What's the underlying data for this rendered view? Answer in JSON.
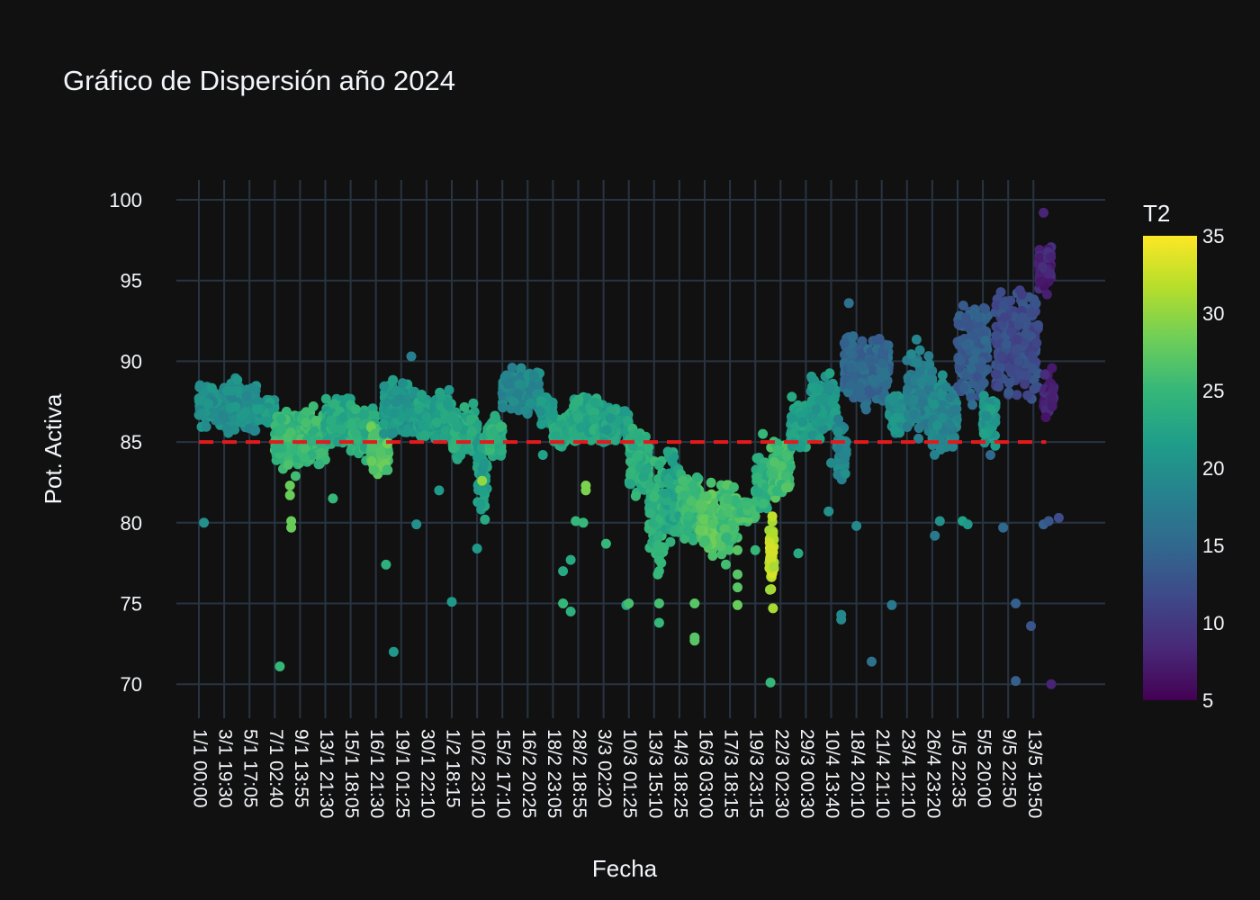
{
  "chart_data": {
    "type": "scatter",
    "title": "Gráfico de Dispersión año 2024",
    "xlabel": "Fecha",
    "ylabel": "Pot. Activa",
    "ylim": [
      68,
      101
    ],
    "yticks": [
      70,
      75,
      80,
      85,
      90,
      95,
      100
    ],
    "grid": true,
    "x_tick_labels": [
      "1/1 00:00",
      "3/1 19:30",
      "5/1 17:05",
      "7/1 02:40",
      "9/1 13:55",
      "13/1 21:30",
      "15/1 18:05",
      "16/1 21:30",
      "19/1 01:25",
      "30/1 22:10",
      "1/2 18:15",
      "10/2 23:10",
      "15/2 17:10",
      "16/2 20:25",
      "18/2 23:05",
      "28/2 18:55",
      "3/3 02:20",
      "10/3 01:25",
      "13/3 15:10",
      "14/3 18:25",
      "16/3 03:00",
      "17/3 18:15",
      "19/3 23:15",
      "22/3 02:30",
      "29/3 00:30",
      "10/4 13:40",
      "18/4 20:10",
      "21/4 21:10",
      "23/4 12:10",
      "26/4 23:20",
      "1/5 22:35",
      "5/5 20:00",
      "9/5 22:50",
      "13/5 19:50"
    ],
    "reference_line": {
      "y": 85,
      "color": "#e31a1c",
      "style": "dashed"
    },
    "colorbar": {
      "title": "T2",
      "min": 5,
      "max": 35,
      "ticks": [
        5,
        10,
        15,
        20,
        25,
        30,
        35
      ],
      "colorscale": "Viridis"
    },
    "clusters": [
      {
        "x": [
          0,
          1.1
        ],
        "y": [
          85.5,
          89.0
        ],
        "t2": 20
      },
      {
        "x": [
          1.1,
          2.3
        ],
        "y": [
          85.2,
          89.2
        ],
        "t2": 20
      },
      {
        "x": [
          2.3,
          3.0
        ],
        "y": [
          86.0,
          88.0
        ],
        "t2": 21
      },
      {
        "x": [
          3.0,
          4.0
        ],
        "y": [
          82.5,
          87.2
        ],
        "t2": 25
      },
      {
        "x": [
          4.0,
          5.0
        ],
        "y": [
          83.0,
          87.5
        ],
        "t2": 25
      },
      {
        "x": [
          5.0,
          6.0
        ],
        "y": [
          84.5,
          88.0
        ],
        "t2": 23
      },
      {
        "x": [
          6.0,
          7.0
        ],
        "y": [
          83.5,
          88.0
        ],
        "t2": 24
      },
      {
        "x": [
          6.8,
          7.5
        ],
        "y": [
          82.0,
          87.0
        ],
        "t2": 27
      },
      {
        "x": [
          7.3,
          8.6
        ],
        "y": [
          85.0,
          89.0
        ],
        "t2": 21
      },
      {
        "x": [
          8.6,
          10.0
        ],
        "y": [
          84.8,
          88.5
        ],
        "t2": 22
      },
      {
        "x": [
          10.0,
          11.0
        ],
        "y": [
          83.5,
          87.5
        ],
        "t2": 23
      },
      {
        "x": [
          11.0,
          11.4
        ],
        "y": [
          79.5,
          86.0
        ],
        "t2": 22
      },
      {
        "x": [
          11.4,
          12.0
        ],
        "y": [
          83.5,
          87.0
        ],
        "t2": 24
      },
      {
        "x": [
          12.0,
          13.5
        ],
        "y": [
          86.5,
          90.0
        ],
        "t2": 19
      },
      {
        "x": [
          13.5,
          14.0
        ],
        "y": [
          85.5,
          88.5
        ],
        "t2": 21
      },
      {
        "x": [
          14.0,
          15.0
        ],
        "y": [
          84.5,
          87.0
        ],
        "t2": 23
      },
      {
        "x": [
          14.8,
          16.0
        ],
        "y": [
          84.5,
          88.5
        ],
        "t2": 23
      },
      {
        "x": [
          16.0,
          17.0
        ],
        "y": [
          84.5,
          87.5
        ],
        "t2": 22
      },
      {
        "x": [
          17.0,
          17.8
        ],
        "y": [
          81.0,
          86.5
        ],
        "t2": 24
      },
      {
        "x": [
          17.8,
          18.4
        ],
        "y": [
          76.5,
          84.5
        ],
        "t2": 24
      },
      {
        "x": [
          18.4,
          19.0
        ],
        "y": [
          78.0,
          85.5
        ],
        "t2": 23
      },
      {
        "x": [
          19.0,
          19.8
        ],
        "y": [
          78.5,
          84.0
        ],
        "t2": 25
      },
      {
        "x": [
          19.8,
          20.6
        ],
        "y": [
          77.0,
          83.0
        ],
        "t2": 27
      },
      {
        "x": [
          20.6,
          21.3
        ],
        "y": [
          76.8,
          83.5
        ],
        "t2": 26
      },
      {
        "x": [
          21.3,
          22.0
        ],
        "y": [
          79.8,
          81.5
        ],
        "t2": 26
      },
      {
        "x": [
          22.0,
          22.6
        ],
        "y": [
          80.0,
          84.5
        ],
        "t2": 24
      },
      {
        "x": [
          22.55,
          22.75
        ],
        "y": [
          75.2,
          81.0
        ],
        "t2": 32
      },
      {
        "x": [
          22.6,
          23.4
        ],
        "y": [
          81.0,
          85.5
        ],
        "t2": 26
      },
      {
        "x": [
          23.4,
          24.2
        ],
        "y": [
          84.0,
          88.0
        ],
        "t2": 22
      },
      {
        "x": [
          24.2,
          25.2
        ],
        "y": [
          85.0,
          89.5
        ],
        "t2": 21
      },
      {
        "x": [
          25.2,
          25.6
        ],
        "y": [
          82.0,
          87.0
        ],
        "t2": 19
      },
      {
        "x": [
          25.5,
          27.3
        ],
        "y": [
          86.5,
          92.5
        ],
        "t2": 15
      },
      {
        "x": [
          27.3,
          28.0
        ],
        "y": [
          85.0,
          88.5
        ],
        "t2": 20
      },
      {
        "x": [
          28.0,
          29.0
        ],
        "y": [
          84.5,
          92.0
        ],
        "t2": 18
      },
      {
        "x": [
          29.0,
          30.0
        ],
        "y": [
          83.5,
          89.5
        ],
        "t2": 19
      },
      {
        "x": [
          30.0,
          31.2
        ],
        "y": [
          86.5,
          95.0
        ],
        "t2": 14
      },
      {
        "x": [
          31.0,
          31.5
        ],
        "y": [
          84.5,
          88.5
        ],
        "t2": 21
      },
      {
        "x": [
          31.5,
          33.2
        ],
        "y": [
          86.5,
          95.5
        ],
        "t2": 12
      },
      {
        "x": [
          33.2,
          33.7
        ],
        "y": [
          93.5,
          98.0
        ],
        "t2": 8
      },
      {
        "x": [
          33.4,
          33.8
        ],
        "y": [
          85.8,
          90.0
        ],
        "t2": 8
      }
    ],
    "outliers": [
      {
        "x": 0.2,
        "y": 80.0,
        "t2": 20
      },
      {
        "x": 3.2,
        "y": 71.1,
        "t2": 25
      },
      {
        "x": 3.6,
        "y": 82.3,
        "t2": 28
      },
      {
        "x": 3.65,
        "y": 80.1,
        "t2": 28
      },
      {
        "x": 3.65,
        "y": 79.7,
        "t2": 28
      },
      {
        "x": 3.6,
        "y": 81.7,
        "t2": 28
      },
      {
        "x": 5.3,
        "y": 81.5,
        "t2": 25
      },
      {
        "x": 7.4,
        "y": 77.4,
        "t2": 24
      },
      {
        "x": 7.7,
        "y": 72.0,
        "t2": 21
      },
      {
        "x": 8.4,
        "y": 90.3,
        "t2": 18
      },
      {
        "x": 8.6,
        "y": 79.9,
        "t2": 20
      },
      {
        "x": 9.5,
        "y": 82.0,
        "t2": 21
      },
      {
        "x": 10.0,
        "y": 75.1,
        "t2": 21
      },
      {
        "x": 11.0,
        "y": 78.4,
        "t2": 21
      },
      {
        "x": 11.2,
        "y": 82.6,
        "t2": 30
      },
      {
        "x": 13.6,
        "y": 84.2,
        "t2": 22
      },
      {
        "x": 14.4,
        "y": 77.0,
        "t2": 23
      },
      {
        "x": 14.4,
        "y": 75.0,
        "t2": 25
      },
      {
        "x": 14.7,
        "y": 77.7,
        "t2": 23
      },
      {
        "x": 14.7,
        "y": 74.5,
        "t2": 24
      },
      {
        "x": 14.9,
        "y": 80.1,
        "t2": 25
      },
      {
        "x": 15.3,
        "y": 82.3,
        "t2": 29
      },
      {
        "x": 15.3,
        "y": 82.0,
        "t2": 29
      },
      {
        "x": 15.2,
        "y": 80.0,
        "t2": 25
      },
      {
        "x": 16.1,
        "y": 78.7,
        "t2": 25
      },
      {
        "x": 16.9,
        "y": 74.9,
        "t2": 23
      },
      {
        "x": 17.0,
        "y": 75.0,
        "t2": 26
      },
      {
        "x": 18.2,
        "y": 75.0,
        "t2": 26
      },
      {
        "x": 18.2,
        "y": 73.8,
        "t2": 25
      },
      {
        "x": 18.2,
        "y": 77.0,
        "t2": 25
      },
      {
        "x": 18.2,
        "y": 77.7,
        "t2": 25
      },
      {
        "x": 19.6,
        "y": 72.9,
        "t2": 27
      },
      {
        "x": 19.6,
        "y": 72.7,
        "t2": 27
      },
      {
        "x": 19.6,
        "y": 75.0,
        "t2": 27
      },
      {
        "x": 21.3,
        "y": 78.3,
        "t2": 27
      },
      {
        "x": 21.3,
        "y": 76.8,
        "t2": 27
      },
      {
        "x": 21.3,
        "y": 76.0,
        "t2": 27
      },
      {
        "x": 21.3,
        "y": 74.9,
        "t2": 28
      },
      {
        "x": 22.0,
        "y": 78.3,
        "t2": 25
      },
      {
        "x": 22.3,
        "y": 85.5,
        "t2": 25
      },
      {
        "x": 22.7,
        "y": 74.7,
        "t2": 31
      },
      {
        "x": 22.6,
        "y": 70.1,
        "t2": 25
      },
      {
        "x": 23.7,
        "y": 78.1,
        "t2": 23
      },
      {
        "x": 24.9,
        "y": 80.7,
        "t2": 20
      },
      {
        "x": 25.0,
        "y": 83.7,
        "t2": 19
      },
      {
        "x": 25.4,
        "y": 74.3,
        "t2": 19
      },
      {
        "x": 25.4,
        "y": 74.0,
        "t2": 19
      },
      {
        "x": 25.7,
        "y": 93.6,
        "t2": 16
      },
      {
        "x": 26.0,
        "y": 79.8,
        "t2": 19
      },
      {
        "x": 26.6,
        "y": 71.4,
        "t2": 16
      },
      {
        "x": 27.4,
        "y": 74.9,
        "t2": 17
      },
      {
        "x": 29.1,
        "y": 79.2,
        "t2": 17
      },
      {
        "x": 29.3,
        "y": 80.1,
        "t2": 20
      },
      {
        "x": 30.2,
        "y": 80.1,
        "t2": 22
      },
      {
        "x": 30.4,
        "y": 79.9,
        "t2": 21
      },
      {
        "x": 31.3,
        "y": 84.2,
        "t2": 15
      },
      {
        "x": 31.8,
        "y": 79.7,
        "t2": 15
      },
      {
        "x": 32.3,
        "y": 75.0,
        "t2": 14
      },
      {
        "x": 32.3,
        "y": 70.2,
        "t2": 14
      },
      {
        "x": 32.9,
        "y": 73.6,
        "t2": 13
      },
      {
        "x": 33.4,
        "y": 79.9,
        "t2": 14
      },
      {
        "x": 33.4,
        "y": 99.2,
        "t2": 8
      },
      {
        "x": 33.7,
        "y": 70.0,
        "t2": 8
      },
      {
        "x": 34.0,
        "y": 80.3,
        "t2": 12
      },
      {
        "x": 33.6,
        "y": 80.1,
        "t2": 13
      }
    ]
  }
}
